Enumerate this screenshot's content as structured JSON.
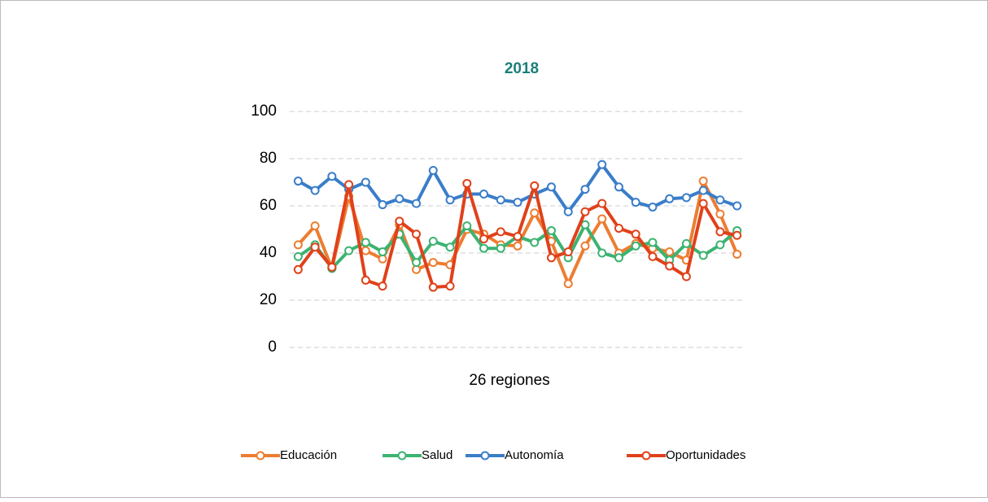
{
  "chart_data": {
    "type": "line",
    "title": "2018",
    "x_label": "26 regiones",
    "categories": [
      null,
      null,
      null,
      null,
      null,
      null,
      null,
      null,
      null,
      null,
      null,
      null,
      null,
      null,
      null,
      null,
      null,
      null,
      null,
      null,
      null,
      null,
      null,
      null,
      null,
      null,
      null
    ],
    "series": [
      {
        "name": "Educación",
        "color": "#ed7d31",
        "values": [
          43.5,
          51.5,
          33.5,
          64,
          41,
          37.5,
          52,
          33,
          36,
          35,
          50,
          48,
          43.5,
          43,
          57,
          45,
          27,
          43,
          54.5,
          40,
          44,
          42,
          40.5,
          37,
          70.5,
          56.5,
          39.5
        ]
      },
      {
        "name": "Salud",
        "color": "#3cb371",
        "values": [
          38.5,
          43.5,
          33.5,
          41,
          44.5,
          40.5,
          48,
          36,
          45,
          42.5,
          51.5,
          42,
          42,
          47,
          44.5,
          49.5,
          38,
          52,
          40,
          38,
          43,
          44.5,
          37,
          44,
          39,
          43.5,
          49.5
        ]
      },
      {
        "name": "Autonomía",
        "color": "#3a7dc9",
        "values": [
          70.5,
          66.5,
          72.5,
          67,
          70,
          60.5,
          63,
          61,
          75,
          62.5,
          65,
          65,
          62.5,
          61.5,
          65,
          68,
          57.5,
          67,
          77.5,
          68,
          61.5,
          59.5,
          63,
          63.5,
          66.5,
          62.5,
          60
        ]
      },
      {
        "name": "Oportunidades",
        "color": "#e0411a",
        "values": [
          33,
          42.5,
          34,
          69,
          28.5,
          26,
          53.5,
          48,
          25.5,
          26,
          69.5,
          46,
          49,
          47,
          68.5,
          38,
          40.5,
          57.5,
          61,
          50.5,
          48,
          38.5,
          34.5,
          30,
          61,
          49,
          47.5
        ]
      }
    ],
    "ylim": [
      0,
      100
    ],
    "yticks": [
      0,
      20,
      40,
      60,
      80,
      100
    ],
    "grid": true,
    "legend": "bottom"
  }
}
